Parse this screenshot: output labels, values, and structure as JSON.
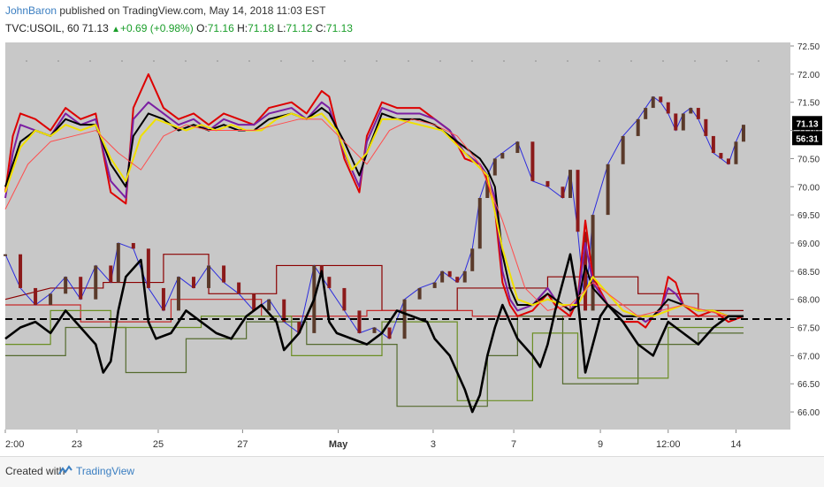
{
  "header": {
    "author": "JohnBaron",
    "published": " published on TradingView.com, May 14, 2018 11:03 EST",
    "symbol": "TVC:USOIL, 60",
    "last": "71.13",
    "change": "+0.69 (+0.98%)",
    "o_label": "O:",
    "o_val": "71.16",
    "h_label": "H:",
    "h_val": "71.18",
    "l_label": "L:",
    "l_val": "71.12",
    "c_label": "C:",
    "c_val": "71.13"
  },
  "footer": {
    "created": "Created with",
    "brand": "TradingView"
  },
  "colors": {
    "background": "#c8c8c8",
    "up": "#1a9e2a",
    "price_tag": "#000000",
    "dashed_line": "#000000"
  },
  "chart_data": {
    "type": "line",
    "title": "",
    "xlabel": "",
    "ylabel": "",
    "ylim": [
      65.75,
      72.5
    ],
    "yticks": [
      66.0,
      66.5,
      67.0,
      67.5,
      68.0,
      68.5,
      69.0,
      69.5,
      70.0,
      70.5,
      71.0,
      71.5,
      72.0,
      72.5
    ],
    "ytick_labels": [
      "66.00",
      "66.50",
      "67.00",
      "67.50",
      "68.00",
      "68.50",
      "69.00",
      "69.50",
      "70.00",
      "70.50",
      "71.00",
      "71.50",
      "72.00",
      "72.50"
    ],
    "x_range": [
      0,
      100
    ],
    "xticks": [
      {
        "x": 0,
        "label": "2:00",
        "bold": false
      },
      {
        "x": 9.5,
        "label": "23",
        "bold": false
      },
      {
        "x": 20.3,
        "label": "25",
        "bold": false
      },
      {
        "x": 31.5,
        "label": "27",
        "bold": false
      },
      {
        "x": 44.2,
        "label": "May",
        "bold": true
      },
      {
        "x": 56.8,
        "label": "3",
        "bold": false
      },
      {
        "x": 67.5,
        "label": "7",
        "bold": false
      },
      {
        "x": 79.0,
        "label": "9",
        "bold": false
      },
      {
        "x": 88.0,
        "label": "12:00",
        "bold": false
      },
      {
        "x": 97.0,
        "label": "14",
        "bold": false
      }
    ],
    "price_tag": "71.13",
    "countdown_tag": "56:31",
    "dashed_level": 67.65,
    "price_series": {
      "name": "Price",
      "x": [
        0,
        2,
        4,
        6,
        8,
        10,
        12,
        14,
        15,
        17,
        19,
        21,
        23,
        25,
        27,
        29,
        31,
        33,
        35,
        37,
        39,
        41,
        42,
        43,
        45,
        47,
        49,
        51,
        53,
        55,
        57,
        58,
        59,
        60,
        61,
        62,
        63,
        64,
        65,
        66,
        68,
        70,
        72,
        74,
        75,
        76,
        77,
        78,
        80,
        82,
        84,
        85,
        86,
        87,
        88,
        89,
        90,
        91,
        92,
        93,
        94,
        95,
        96,
        97,
        98
      ],
      "y": [
        68.8,
        68.2,
        67.9,
        68.1,
        68.4,
        68.0,
        68.6,
        68.3,
        69.0,
        68.9,
        68.2,
        67.8,
        68.4,
        68.2,
        68.6,
        68.3,
        68.1,
        67.8,
        68.0,
        67.6,
        67.4,
        68.6,
        68.4,
        68.2,
        67.8,
        67.4,
        67.5,
        67.3,
        68.0,
        68.2,
        68.3,
        68.5,
        68.4,
        68.3,
        68.5,
        68.9,
        69.8,
        70.2,
        70.5,
        70.6,
        70.8,
        70.1,
        70.0,
        69.8,
        70.3,
        69.2,
        67.8,
        69.5,
        70.4,
        70.9,
        71.2,
        71.4,
        71.6,
        71.5,
        71.3,
        71.0,
        71.3,
        71.4,
        71.2,
        70.9,
        70.6,
        70.5,
        70.4,
        70.8,
        71.1
      ]
    },
    "indicator_series": [
      {
        "name": "",
        "color": "#dd0000",
        "x": [
          0,
          1,
          2,
          4,
          6,
          8,
          10,
          12,
          14,
          16,
          17,
          19,
          21,
          23,
          25,
          27,
          29,
          31,
          33,
          35,
          38,
          40,
          42,
          43,
          45,
          47,
          48,
          50,
          52,
          55,
          57,
          59,
          61,
          63,
          64,
          65,
          66,
          67,
          68,
          70,
          72,
          73,
          74,
          75,
          76,
          77,
          78,
          80,
          82,
          84,
          85,
          86,
          87,
          88,
          89,
          90,
          92,
          94,
          96,
          98
        ],
        "y": [
          69.9,
          70.9,
          71.3,
          71.2,
          71.0,
          71.4,
          71.2,
          71.3,
          69.9,
          69.7,
          71.4,
          72.0,
          71.4,
          71.2,
          71.3,
          71.1,
          71.3,
          71.2,
          71.1,
          71.4,
          71.5,
          71.3,
          71.7,
          71.6,
          70.5,
          69.9,
          70.9,
          71.5,
          71.4,
          71.4,
          71.2,
          71.0,
          70.5,
          70.4,
          70.1,
          69.6,
          68.3,
          67.9,
          67.7,
          67.8,
          68.1,
          67.9,
          67.8,
          67.7,
          68.0,
          69.4,
          68.4,
          67.9,
          67.6,
          67.6,
          67.5,
          67.7,
          67.8,
          68.4,
          68.3,
          67.9,
          67.7,
          67.8,
          67.6,
          67.7
        ]
      },
      {
        "name": "",
        "color": "#7b1fa2",
        "x": [
          0,
          1,
          2,
          4,
          6,
          8,
          10,
          12,
          14,
          16,
          17,
          19,
          21,
          23,
          25,
          27,
          29,
          31,
          33,
          35,
          38,
          40,
          42,
          43,
          45,
          47,
          48,
          50,
          52,
          55,
          57,
          59,
          61,
          63,
          64,
          65,
          66,
          67,
          68,
          70,
          72,
          73,
          74,
          75,
          76,
          77,
          78,
          80,
          82,
          84,
          85,
          86,
          87,
          88,
          89,
          90,
          92,
          94,
          96,
          98
        ],
        "y": [
          69.8,
          70.6,
          71.1,
          71.0,
          70.9,
          71.3,
          71.1,
          71.2,
          70.1,
          69.8,
          71.2,
          71.5,
          71.3,
          71.1,
          71.2,
          71.0,
          71.2,
          71.1,
          71.1,
          71.3,
          71.4,
          71.2,
          71.5,
          71.4,
          70.6,
          70.0,
          70.8,
          71.4,
          71.3,
          71.3,
          71.2,
          71.0,
          70.6,
          70.4,
          70.2,
          69.8,
          68.5,
          68.0,
          67.8,
          67.9,
          68.2,
          68.0,
          67.9,
          67.8,
          68.0,
          69.0,
          68.3,
          67.9,
          67.7,
          67.7,
          67.6,
          67.7,
          67.8,
          68.2,
          68.1,
          67.9,
          67.8,
          67.8,
          67.7,
          67.7
        ]
      },
      {
        "name": "",
        "color": "#000000",
        "x": [
          0,
          2,
          4,
          6,
          8,
          10,
          12,
          14,
          16,
          17,
          19,
          21,
          23,
          25,
          27,
          29,
          31,
          33,
          35,
          38,
          40,
          42,
          43,
          45,
          47,
          48,
          50,
          52,
          55,
          57,
          59,
          61,
          63,
          64,
          65,
          66,
          67,
          68,
          70,
          72,
          74,
          75,
          76,
          77,
          78,
          80,
          82,
          84,
          86,
          88,
          90,
          92,
          94,
          96,
          98
        ],
        "y": [
          70.0,
          70.8,
          71.0,
          70.9,
          71.2,
          71.1,
          71.1,
          70.4,
          70.0,
          70.9,
          71.3,
          71.2,
          71.0,
          71.1,
          71.0,
          71.1,
          71.0,
          71.0,
          71.2,
          71.3,
          71.2,
          71.4,
          71.3,
          70.8,
          70.2,
          70.6,
          71.3,
          71.2,
          71.2,
          71.1,
          70.9,
          70.7,
          70.5,
          70.3,
          70.0,
          68.8,
          68.2,
          67.9,
          67.9,
          68.1,
          67.9,
          67.8,
          67.9,
          68.6,
          68.2,
          67.9,
          67.7,
          67.7,
          67.7,
          68.0,
          67.9,
          67.8,
          67.8,
          67.7,
          67.7
        ]
      },
      {
        "name": "",
        "color": "#f0e000",
        "x": [
          0,
          2,
          4,
          6,
          8,
          10,
          12,
          14,
          16,
          18,
          20,
          22,
          24,
          26,
          28,
          30,
          32,
          34,
          36,
          38,
          40,
          42,
          44,
          46,
          48,
          50,
          52,
          55,
          58,
          61,
          64,
          66,
          68,
          70,
          72,
          74,
          76,
          78,
          80,
          82,
          84,
          86,
          88,
          90,
          92,
          94,
          96,
          98
        ],
        "y": [
          69.9,
          70.7,
          71.0,
          70.9,
          71.1,
          71.0,
          71.1,
          70.5,
          70.1,
          70.9,
          71.2,
          71.1,
          71.0,
          71.1,
          71.0,
          71.1,
          71.0,
          71.0,
          71.2,
          71.3,
          71.2,
          71.3,
          71.0,
          70.3,
          70.6,
          71.2,
          71.2,
          71.1,
          71.0,
          70.6,
          70.2,
          68.9,
          68.0,
          67.9,
          68.0,
          67.9,
          67.9,
          68.4,
          68.1,
          67.8,
          67.7,
          67.7,
          67.8,
          67.9,
          67.8,
          67.8,
          67.7,
          67.7
        ]
      },
      {
        "name": "",
        "color": "#ff4d4d",
        "x": [
          0,
          3,
          6,
          9,
          12,
          15,
          18,
          21,
          24,
          27,
          30,
          33,
          36,
          39,
          42,
          45,
          48,
          51,
          54,
          57,
          60,
          63,
          66,
          69,
          72,
          75,
          78,
          81,
          84,
          87,
          90,
          93,
          96,
          98
        ],
        "y": [
          69.6,
          70.4,
          70.8,
          70.9,
          71.0,
          70.6,
          70.3,
          70.9,
          71.1,
          71.0,
          71.0,
          71.0,
          71.1,
          71.2,
          71.2,
          70.8,
          70.4,
          71.0,
          71.2,
          71.1,
          70.9,
          70.4,
          69.4,
          68.2,
          67.8,
          67.9,
          68.3,
          68.0,
          67.7,
          67.8,
          67.9,
          67.8,
          67.7,
          67.7
        ]
      },
      {
        "name": "",
        "color": "#000000",
        "x": [
          0,
          2,
          4,
          6,
          8,
          10,
          12,
          13,
          14,
          15,
          16,
          18,
          19,
          20,
          22,
          24,
          26,
          28,
          30,
          32,
          34,
          36,
          37,
          39,
          41,
          42,
          43,
          44,
          46,
          48,
          50,
          52,
          54,
          56,
          57,
          59,
          61,
          62,
          63,
          64,
          65,
          66,
          67,
          68,
          70,
          71,
          72,
          73,
          74,
          75,
          76,
          77,
          78,
          79,
          80,
          82,
          84,
          86,
          88,
          90,
          92,
          94,
          96,
          98
        ],
        "y": [
          67.3,
          67.5,
          67.6,
          67.4,
          67.8,
          67.5,
          67.2,
          66.7,
          66.9,
          67.8,
          68.4,
          68.7,
          67.6,
          67.3,
          67.4,
          67.8,
          67.6,
          67.4,
          67.3,
          67.7,
          67.9,
          67.6,
          67.1,
          67.4,
          68.0,
          68.5,
          67.6,
          67.4,
          67.3,
          67.2,
          67.4,
          67.8,
          67.7,
          67.6,
          67.3,
          67.0,
          66.4,
          66.0,
          66.3,
          67.0,
          67.5,
          67.9,
          67.6,
          67.3,
          67.0,
          66.8,
          67.2,
          67.8,
          68.3,
          68.8,
          68.0,
          66.7,
          67.2,
          67.7,
          67.9,
          67.6,
          67.2,
          67.0,
          67.6,
          67.4,
          67.2,
          67.5,
          67.7,
          67.7
        ]
      }
    ],
    "step_series": [
      {
        "name": "",
        "color": "#8b0000",
        "x": [
          0,
          6,
          13,
          13,
          21,
          21,
          27,
          27,
          36,
          36,
          50,
          50,
          60,
          60,
          72,
          72,
          84,
          84,
          92,
          92,
          98
        ],
        "y": [
          68.0,
          68.2,
          68.2,
          68.3,
          68.3,
          68.8,
          68.8,
          68.1,
          68.1,
          68.6,
          68.6,
          67.8,
          67.8,
          68.2,
          68.2,
          68.4,
          68.4,
          68.1,
          68.1,
          67.8,
          67.8
        ]
      },
      {
        "name": "",
        "color": "#c62828",
        "x": [
          0,
          10,
          10,
          22,
          22,
          34,
          34,
          48,
          48,
          62,
          62,
          75,
          75,
          88,
          88,
          98
        ],
        "y": [
          67.9,
          67.9,
          67.6,
          67.6,
          68.0,
          68.0,
          67.7,
          67.7,
          67.8,
          67.8,
          67.7,
          67.7,
          67.9,
          67.9,
          67.7,
          67.7
        ]
      },
      {
        "name": "",
        "color": "#556b2f",
        "x": [
          0,
          8,
          8,
          16,
          16,
          24,
          24,
          32,
          32,
          40,
          40,
          52,
          52,
          64,
          64,
          68,
          68,
          74,
          74,
          84,
          84,
          92,
          92,
          98
        ],
        "y": [
          67.0,
          67.0,
          67.5,
          67.5,
          66.7,
          66.7,
          67.3,
          67.3,
          67.6,
          67.6,
          67.2,
          67.2,
          66.1,
          66.1,
          67.0,
          67.0,
          67.7,
          67.7,
          66.5,
          66.5,
          67.2,
          67.2,
          67.4,
          67.4
        ]
      },
      {
        "name": "",
        "color": "#6b8e23",
        "x": [
          0,
          6,
          6,
          14,
          14,
          26,
          26,
          38,
          38,
          50,
          50,
          60,
          60,
          70,
          70,
          76,
          76,
          88,
          88,
          98
        ],
        "y": [
          67.2,
          67.2,
          67.8,
          67.8,
          67.5,
          67.5,
          67.7,
          67.7,
          67.0,
          67.0,
          67.6,
          67.6,
          66.2,
          66.2,
          67.4,
          67.4,
          66.6,
          66.6,
          67.5,
          67.5
        ]
      }
    ]
  }
}
